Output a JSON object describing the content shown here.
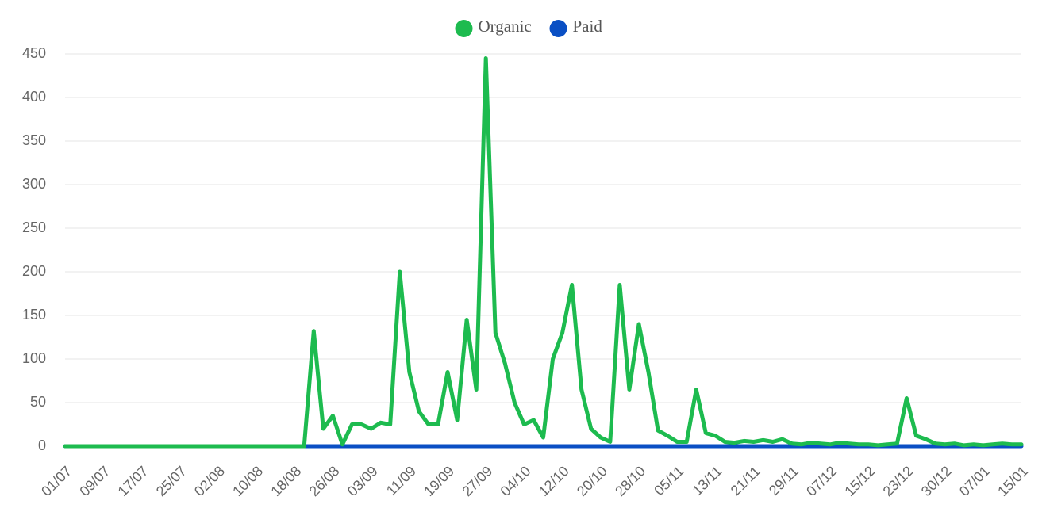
{
  "chart_data": {
    "type": "line",
    "categories": [
      "01/07",
      null,
      null,
      null,
      "09/07",
      null,
      null,
      null,
      "17/07",
      null,
      null,
      null,
      "25/07",
      null,
      null,
      null,
      "02/08",
      null,
      null,
      null,
      "10/08",
      null,
      null,
      null,
      "18/08",
      null,
      null,
      null,
      "26/08",
      null,
      null,
      null,
      "03/09",
      null,
      null,
      null,
      "11/09",
      null,
      null,
      null,
      "19/09",
      null,
      null,
      null,
      "27/09",
      null,
      null,
      null,
      "04/10",
      null,
      null,
      null,
      "12/10",
      null,
      null,
      null,
      "20/10",
      null,
      null,
      null,
      "28/10",
      null,
      null,
      null,
      "05/11",
      null,
      null,
      null,
      "13/11",
      null,
      null,
      null,
      "21/11",
      null,
      null,
      null,
      "29/11",
      null,
      null,
      null,
      "07/12",
      null,
      null,
      null,
      "15/12",
      null,
      null,
      null,
      "23/12",
      null,
      null,
      null,
      "30/12",
      null,
      null,
      null,
      "07/01",
      null,
      null,
      null,
      "15/01"
    ],
    "series": [
      {
        "name": "Organic",
        "color": "#1dbb4f",
        "values": [
          0,
          0,
          0,
          0,
          0,
          0,
          0,
          0,
          0,
          0,
          0,
          0,
          0,
          0,
          0,
          0,
          0,
          0,
          0,
          0,
          0,
          0,
          0,
          0,
          0,
          0,
          132,
          20,
          35,
          2,
          25,
          25,
          20,
          27,
          25,
          200,
          85,
          40,
          25,
          25,
          85,
          30,
          145,
          65,
          445,
          130,
          95,
          50,
          25,
          30,
          10,
          100,
          130,
          185,
          65,
          20,
          10,
          5,
          185,
          65,
          140,
          85,
          18,
          12,
          5,
          5,
          65,
          15,
          12,
          5,
          4,
          6,
          5,
          7,
          5,
          8,
          3,
          2,
          4,
          3,
          2,
          4,
          3,
          2,
          2,
          1,
          2,
          3,
          55,
          12,
          8,
          3,
          2,
          3,
          1,
          2,
          1,
          2,
          3,
          2,
          2
        ]
      },
      {
        "name": "Paid",
        "color": "#0a4fc4",
        "values": [
          0,
          0,
          0,
          0,
          0,
          0,
          0,
          0,
          0,
          0,
          0,
          0,
          0,
          0,
          0,
          0,
          0,
          0,
          0,
          0,
          0,
          0,
          0,
          0,
          0,
          0,
          0,
          0,
          0,
          0,
          0,
          0,
          0,
          0,
          0,
          0,
          0,
          0,
          0,
          0,
          0,
          0,
          0,
          0,
          0,
          0,
          0,
          0,
          0,
          0,
          0,
          0,
          0,
          0,
          0,
          0,
          0,
          0,
          0,
          0,
          0,
          0,
          0,
          0,
          0,
          0,
          0,
          0,
          0,
          0,
          0,
          0,
          0,
          0,
          0,
          0,
          0,
          0,
          0,
          0,
          0,
          0,
          0,
          0,
          0,
          0,
          0,
          0,
          0,
          0,
          0,
          0,
          0,
          0,
          0,
          0,
          0,
          0,
          0,
          0,
          0
        ]
      }
    ],
    "ylim": [
      0,
      450
    ],
    "yticks": [
      0,
      50,
      100,
      150,
      200,
      250,
      300,
      350,
      400,
      450
    ],
    "grid": true,
    "legend": "top"
  }
}
